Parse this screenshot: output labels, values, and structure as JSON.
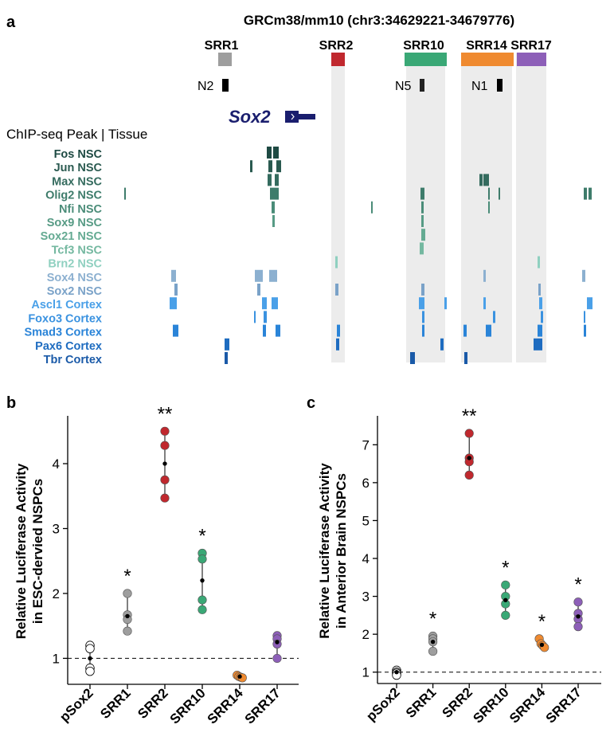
{
  "panel_a": {
    "label": "a",
    "title": "GRCm38/mm10 (chr3:34629221-34679776)",
    "gene": "Sox2",
    "track_header": "ChIP-seq Peak | Tissue",
    "srr_regions": [
      {
        "id": "SRR1",
        "color": "#9e9e9e"
      },
      {
        "id": "SRR2",
        "color": "#c0282e"
      },
      {
        "id": "SRR10",
        "color": "#3aa876"
      },
      {
        "id": "SRR14",
        "color": "#ef8a30"
      },
      {
        "id": "SRR17",
        "color": "#8d5fb8"
      }
    ],
    "elements": [
      "N2",
      "N5",
      "N1"
    ],
    "tracks": [
      {
        "label": "Fos NSC",
        "color": "#1e4a43"
      },
      {
        "label": "Jun NSC",
        "color": "#2a5a50"
      },
      {
        "label": "Max NSC",
        "color": "#346b5e"
      },
      {
        "label": "Olig2 NSC",
        "color": "#3e7c6b"
      },
      {
        "label": "Nfi NSC",
        "color": "#4a8c78"
      },
      {
        "label": "Sox9 NSC",
        "color": "#579b85"
      },
      {
        "label": "Sox21 NSC",
        "color": "#64aa92"
      },
      {
        "label": "Tcf3 NSC",
        "color": "#74b8a0"
      },
      {
        "label": "Brn2 NSC",
        "color": "#8fd0c0"
      },
      {
        "label": "Sox4 NSC",
        "color": "#8cb0d0"
      },
      {
        "label": "Sox2 NSC",
        "color": "#7aa2c8"
      },
      {
        "label": "Ascl1 Cortex",
        "color": "#4aa0e8"
      },
      {
        "label": "Foxo3 Cortex",
        "color": "#3a92e0"
      },
      {
        "label": "Smad3 Cortex",
        "color": "#2a84d8"
      },
      {
        "label": "Pax6 Cortex",
        "color": "#1e6cc0"
      },
      {
        "label": "Tbr Cortex",
        "color": "#1a5aa8"
      }
    ]
  },
  "chart_data": [
    {
      "panel": "b",
      "type": "scatter",
      "ylabel": "Relative Luciferase Activity\nin ESC-dervied NSPCs",
      "ylim": [
        0.6,
        4.7
      ],
      "yticks": [
        "1",
        "2",
        "3",
        "4"
      ],
      "reference_line": 1,
      "categories": [
        "pSox2",
        "SRR1",
        "SRR2",
        "SRR10",
        "SRR14",
        "SRR17"
      ],
      "colors": [
        "#ffffff",
        "#9e9e9e",
        "#c0282e",
        "#3aa876",
        "#ef8a30",
        "#8d5fb8"
      ],
      "significance": [
        "",
        "*",
        "**",
        "*",
        "",
        ""
      ],
      "series": [
        {
          "name": "pSox2",
          "points": [
            1.2,
            1.15,
            0.85,
            0.8
          ],
          "mean": 1.0
        },
        {
          "name": "SRR1",
          "points": [
            2.0,
            1.67,
            1.6,
            1.42
          ],
          "mean": 1.65
        },
        {
          "name": "SRR2",
          "points": [
            4.5,
            4.28,
            3.75,
            3.47
          ],
          "mean": 4.0
        },
        {
          "name": "SRR10",
          "points": [
            2.62,
            2.53,
            1.9,
            1.75
          ],
          "mean": 2.2
        },
        {
          "name": "SRR14",
          "points": [
            0.74,
            0.72,
            0.71,
            0.7
          ],
          "mean": 0.72
        },
        {
          "name": "SRR17",
          "points": [
            1.35,
            1.3,
            1.22,
            1.0
          ],
          "mean": 1.25
        }
      ]
    },
    {
      "panel": "c",
      "type": "scatter",
      "ylabel": "Relative Luciferase Activity\nin Anterior Brain NSPCs",
      "ylim": [
        0.7,
        7.7
      ],
      "yticks": [
        "1",
        "2",
        "3",
        "4",
        "5",
        "6",
        "7"
      ],
      "reference_line": 1,
      "categories": [
        "pSox2",
        "SRR1",
        "SRR2",
        "SRR10",
        "SRR14",
        "SRR17"
      ],
      "colors": [
        "#ffffff",
        "#9e9e9e",
        "#c0282e",
        "#3aa876",
        "#ef8a30",
        "#8d5fb8"
      ],
      "significance": [
        "",
        "*",
        "**",
        "*",
        "*",
        "*"
      ],
      "series": [
        {
          "name": "pSox2",
          "points": [
            1.05,
            1.0,
            0.97,
            0.92
          ],
          "mean": 1.0
        },
        {
          "name": "SRR1",
          "points": [
            1.95,
            1.88,
            1.8,
            1.55
          ],
          "mean": 1.8
        },
        {
          "name": "SRR2",
          "points": [
            7.3,
            6.65,
            6.55,
            6.2
          ],
          "mean": 6.65
        },
        {
          "name": "SRR10",
          "points": [
            3.3,
            3.0,
            2.8,
            2.5
          ],
          "mean": 2.9
        },
        {
          "name": "SRR14",
          "points": [
            1.88,
            1.75,
            1.7,
            1.65
          ],
          "mean": 1.72
        },
        {
          "name": "SRR17",
          "points": [
            2.85,
            2.55,
            2.4,
            2.2
          ],
          "mean": 2.47
        }
      ]
    }
  ]
}
